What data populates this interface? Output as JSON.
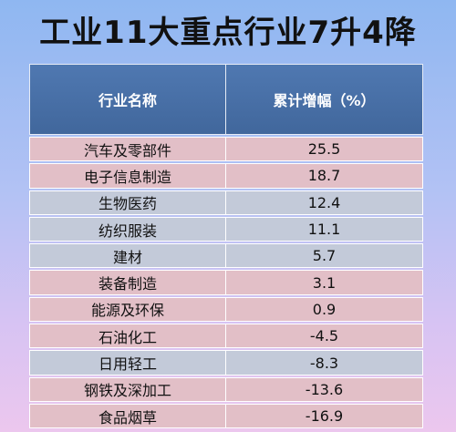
{
  "title": "工业11大重点行业7升4降",
  "table": {
    "headers": [
      "行业名称",
      "累计增幅（%）"
    ]
  },
  "chart_data": {
    "type": "table",
    "title": "工业11大重点行业7升4降",
    "columns": [
      "行业名称",
      "累计增幅（%）"
    ],
    "rows": [
      {
        "name": "汽车及零部件",
        "value": "25.5",
        "shade": "pink"
      },
      {
        "name": "电子信息制造",
        "value": "18.7",
        "shade": "pink"
      },
      {
        "name": "生物医药",
        "value": "12.4",
        "shade": "blue"
      },
      {
        "name": "纺织服装",
        "value": "11.1",
        "shade": "blue"
      },
      {
        "name": "建材",
        "value": "5.7",
        "shade": "blue"
      },
      {
        "name": "装备制造",
        "value": "3.1",
        "shade": "pink"
      },
      {
        "name": "能源及环保",
        "value": "0.9",
        "shade": "pink"
      },
      {
        "name": "石油化工",
        "value": "-4.5",
        "shade": "pink"
      },
      {
        "name": "日用轻工",
        "value": "-8.3",
        "shade": "blue"
      },
      {
        "name": "钢铁及深加工",
        "value": "-13.6",
        "shade": "pink"
      },
      {
        "name": "食品烟草",
        "value": "-16.9",
        "shade": "pink"
      }
    ],
    "colors": {
      "pink": "#e2bfc7",
      "blue": "#c3cad9",
      "header": "#4a71a9"
    }
  }
}
